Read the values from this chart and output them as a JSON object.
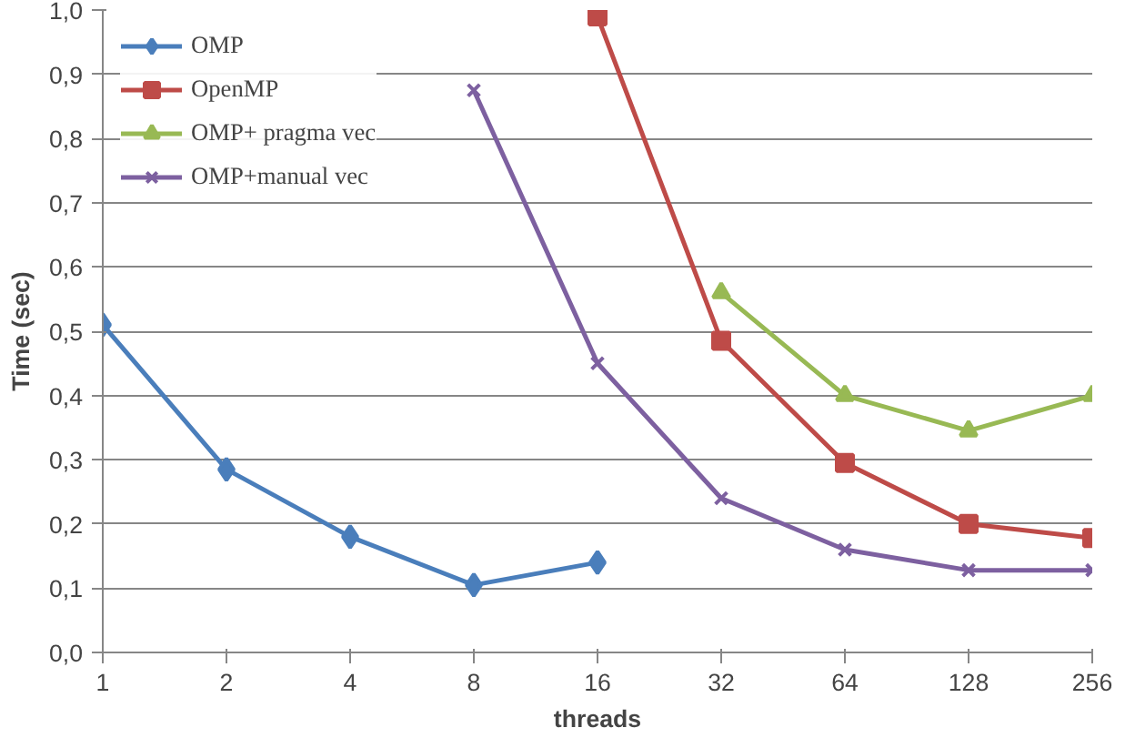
{
  "chart_data": {
    "type": "line",
    "xlabel": "threads",
    "ylabel": "Time (sec)",
    "categories": [
      "1",
      "2",
      "4",
      "8",
      "16",
      "32",
      "64",
      "128",
      "256"
    ],
    "ylim": [
      0,
      1
    ],
    "yticks": [
      {
        "value": 0,
        "label": "0,0"
      },
      {
        "value": 0.1,
        "label": "0,1"
      },
      {
        "value": 0.2,
        "label": "0,2"
      },
      {
        "value": 0.3,
        "label": "0,3"
      },
      {
        "value": 0.4,
        "label": "0,4"
      },
      {
        "value": 0.5,
        "label": "0,5"
      },
      {
        "value": 0.6,
        "label": "0,6"
      },
      {
        "value": 0.7,
        "label": "0,7"
      },
      {
        "value": 0.8,
        "label": "0,8"
      },
      {
        "value": 0.9,
        "label": "0,9"
      },
      {
        "value": 1,
        "label": "1,0"
      }
    ],
    "grid": "y",
    "legend": "top left",
    "line_style": "solid",
    "series": [
      {
        "name": "OMP",
        "color": "#4a7ebb",
        "marker": "diamond",
        "values": [
          0.51,
          0.285,
          0.18,
          0.105,
          0.14,
          null,
          null,
          null,
          null
        ]
      },
      {
        "name": "OpenMP",
        "color": "#be4b48",
        "marker": "square",
        "values": [
          null,
          null,
          null,
          null,
          0.99,
          0.485,
          0.295,
          0.2,
          0.178
        ]
      },
      {
        "name": "OMP+ pragma vec",
        "color": "#98b954",
        "marker": "triangle",
        "values": [
          null,
          null,
          null,
          null,
          null,
          0.56,
          0.4,
          0.345,
          0.4
        ]
      },
      {
        "name": "OMP+manual vec",
        "color": "#7d60a0",
        "marker": "cross",
        "values": [
          null,
          null,
          null,
          0.875,
          0.45,
          0.24,
          0.16,
          0.128,
          0.128
        ]
      }
    ]
  }
}
